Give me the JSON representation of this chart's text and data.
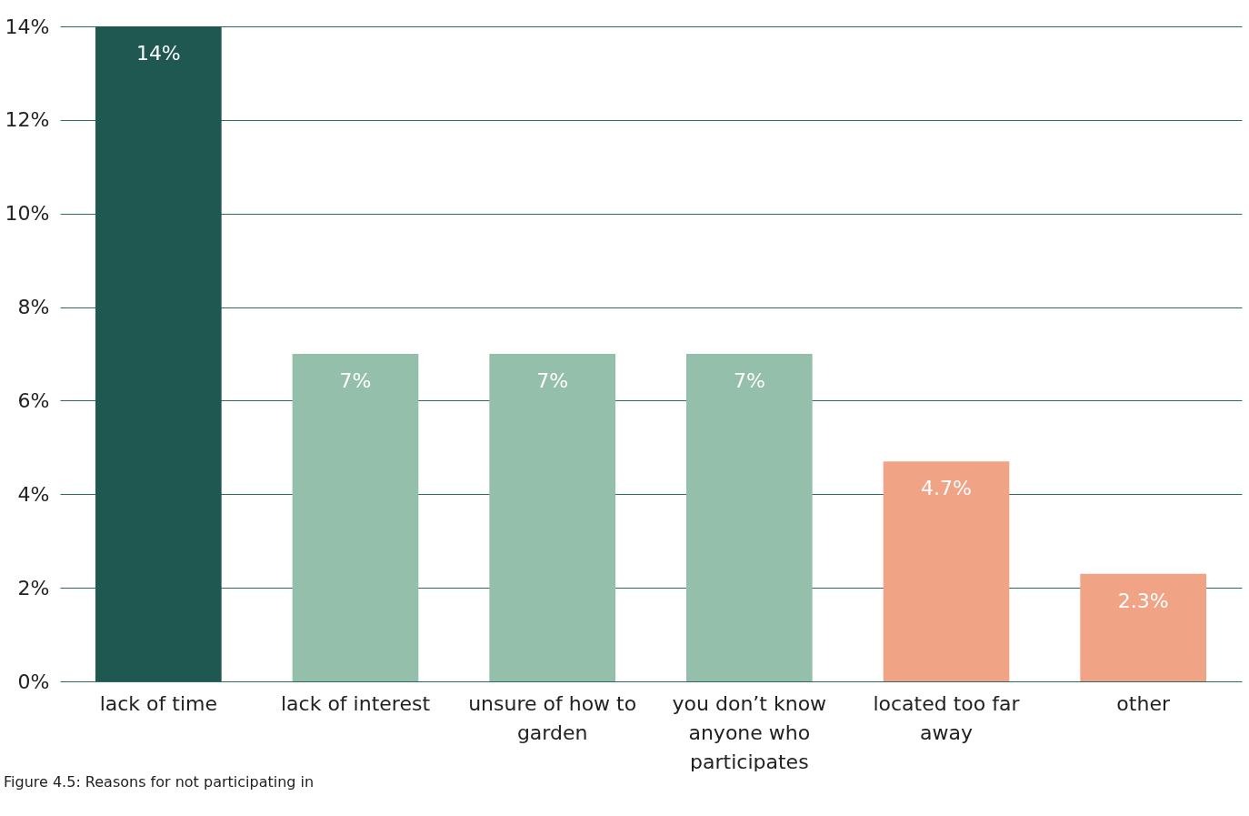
{
  "chart_data": {
    "type": "bar",
    "categories": [
      "lack of time",
      "lack of interest",
      "unsure of how to garden",
      "you don’t know anyone who participates",
      "located too far away",
      "other"
    ],
    "values": [
      14,
      7,
      7,
      7,
      4.7,
      2.3
    ],
    "colors": [
      "#1e5850",
      "#93bfab",
      "#93bfab",
      "#93bfab",
      "#f1a386",
      "#f1a386"
    ],
    "value_labels": [
      "14%",
      "7%",
      "7%",
      "7%",
      "4.7%",
      "2.3%"
    ],
    "ylim": [
      0,
      14
    ],
    "yticks": [
      {
        "value": 0,
        "label": "0%"
      },
      {
        "value": 2,
        "label": "2%"
      },
      {
        "value": 4,
        "label": "4%"
      },
      {
        "value": 6,
        "label": "6%"
      },
      {
        "value": 8,
        "label": "8%"
      },
      {
        "value": 10,
        "label": "10%"
      },
      {
        "value": 12,
        "label": "12%"
      },
      {
        "value": 14,
        "label": "14%"
      }
    ],
    "grid": "y",
    "annotations": [
      "Figure 4.5: Reasons for not participating in"
    ]
  }
}
